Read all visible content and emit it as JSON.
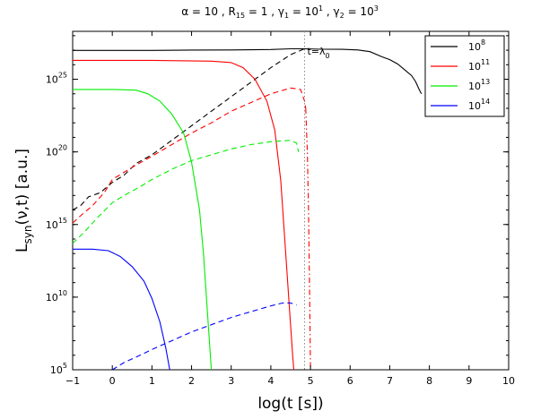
{
  "chart_data": {
    "type": "line",
    "title": {
      "alpha": "α = 10",
      "r15": "R",
      "r15_sub": "15",
      "r15_val": " = 1 ,",
      "g1": "γ",
      "g1_sub": "1",
      "g1_val": " = 10",
      "g1_exp": "1",
      "g2": " , γ",
      "g2_sub": "2",
      "g2_val": " = 10",
      "g2_exp": "3"
    },
    "xlabel": "log(t [s])",
    "ylabel": {
      "main": "L",
      "sub": "syn",
      "rest": "(ν,t) [a.u.]"
    },
    "xlim": [
      -1,
      10
    ],
    "ylim": [
      5,
      28.3
    ],
    "yscale": "log",
    "xticks": [
      "−1",
      "0",
      "1",
      "2",
      "3",
      "4",
      "5",
      "6",
      "7",
      "8",
      "9",
      "10"
    ],
    "yticks": [
      {
        "base": "10",
        "exp": "5",
        "value": 5
      },
      {
        "base": "10",
        "exp": "10",
        "value": 10
      },
      {
        "base": "10",
        "exp": "15",
        "value": 15
      },
      {
        "base": "10",
        "exp": "20",
        "value": 20
      },
      {
        "base": "10",
        "exp": "25",
        "value": 25
      }
    ],
    "annotation": {
      "text": "t=λ",
      "sub": "0",
      "x": 4.85
    },
    "legend_position": "top-right",
    "series": [
      {
        "name": "10",
        "name_exp": "8",
        "color": "#000000",
        "solid": [
          [
            -1,
            26.99
          ],
          [
            1,
            26.99
          ],
          [
            2,
            27.01
          ],
          [
            3,
            27.02
          ],
          [
            4,
            27.05
          ],
          [
            4.5,
            27.1
          ],
          [
            4.85,
            27.1
          ],
          [
            5.3,
            27.07
          ],
          [
            5.8,
            27.06
          ],
          [
            6.2,
            27.02
          ],
          [
            6.5,
            26.9
          ],
          [
            6.8,
            26.55
          ],
          [
            7.0,
            26.35
          ],
          [
            7.2,
            26.05
          ],
          [
            7.4,
            25.6
          ],
          [
            7.55,
            25.25
          ],
          [
            7.65,
            24.85
          ],
          [
            7.75,
            24.25
          ],
          [
            7.8,
            24.0
          ]
        ],
        "dashed": [
          [
            -1,
            16.0
          ],
          [
            -0.8,
            16.3
          ],
          [
            -0.6,
            16.9
          ],
          [
            -0.3,
            17.2
          ],
          [
            0,
            17.9
          ],
          [
            0.3,
            18.4
          ],
          [
            0.6,
            19.2
          ],
          [
            1,
            19.8
          ],
          [
            1.5,
            20.8
          ],
          [
            2,
            21.8
          ],
          [
            2.5,
            22.8
          ],
          [
            3,
            23.8
          ],
          [
            3.5,
            24.8
          ],
          [
            4,
            25.8
          ],
          [
            4.5,
            26.7
          ],
          [
            4.85,
            27.1
          ]
        ]
      },
      {
        "name": "10",
        "name_exp": "11",
        "color": "#ff0000",
        "solid": [
          [
            -1,
            26.3
          ],
          [
            1,
            26.3
          ],
          [
            2.5,
            26.25
          ],
          [
            3.0,
            26.15
          ],
          [
            3.3,
            25.8
          ],
          [
            3.6,
            25.0
          ],
          [
            3.9,
            23.5
          ],
          [
            4.1,
            21.5
          ],
          [
            4.25,
            18.0
          ],
          [
            4.35,
            14.0
          ],
          [
            4.45,
            10.0
          ],
          [
            4.55,
            6.0
          ],
          [
            4.58,
            5.0
          ]
        ],
        "dashed": [
          [
            -1,
            15.1
          ],
          [
            -0.8,
            15.6
          ],
          [
            -0.5,
            16.3
          ],
          [
            -0.2,
            17.2
          ],
          [
            0,
            18.1
          ],
          [
            0.3,
            18.6
          ],
          [
            0.6,
            19.1
          ],
          [
            1,
            19.7
          ],
          [
            1.5,
            20.5
          ],
          [
            2,
            21.3
          ],
          [
            2.5,
            22.0
          ],
          [
            3,
            22.8
          ],
          [
            3.5,
            23.4
          ],
          [
            4,
            24.0
          ],
          [
            4.5,
            24.4
          ],
          [
            4.75,
            24.3
          ],
          [
            4.85,
            23.5
          ],
          [
            4.88,
            23.0
          ]
        ],
        "dashdot": [
          [
            4.88,
            23.0
          ],
          [
            4.92,
            20.0
          ],
          [
            4.95,
            16.0
          ],
          [
            4.98,
            10.0
          ],
          [
            5.0,
            5.0
          ]
        ]
      },
      {
        "name": "10",
        "name_exp": "13",
        "color": "#00ee00",
        "solid": [
          [
            -1,
            24.3
          ],
          [
            0,
            24.3
          ],
          [
            0.6,
            24.25
          ],
          [
            0.9,
            24.0
          ],
          [
            1.2,
            23.5
          ],
          [
            1.5,
            22.6
          ],
          [
            1.8,
            21.3
          ],
          [
            2.0,
            19.3
          ],
          [
            2.2,
            16.0
          ],
          [
            2.3,
            13.0
          ],
          [
            2.4,
            9.0
          ],
          [
            2.5,
            5.0
          ]
        ],
        "dashed": [
          [
            -1,
            13.7
          ],
          [
            -0.7,
            14.5
          ],
          [
            -0.4,
            15.4
          ],
          [
            0,
            16.5
          ],
          [
            0.3,
            17.0
          ],
          [
            0.7,
            17.6
          ],
          [
            1,
            18.1
          ],
          [
            1.5,
            18.8
          ],
          [
            2,
            19.4
          ],
          [
            2.5,
            19.8
          ],
          [
            3,
            20.2
          ],
          [
            3.5,
            20.5
          ],
          [
            4,
            20.7
          ],
          [
            4.5,
            20.8
          ],
          [
            4.65,
            20.6
          ],
          [
            4.7,
            20.0
          ]
        ]
      },
      {
        "name": "10",
        "name_exp": "14",
        "color": "#0000ff",
        "solid": [
          [
            -1,
            13.3
          ],
          [
            -0.5,
            13.3
          ],
          [
            -0.1,
            13.2
          ],
          [
            0.2,
            12.8
          ],
          [
            0.5,
            12.1
          ],
          [
            0.8,
            11.1
          ],
          [
            1.0,
            9.9
          ],
          [
            1.2,
            8.3
          ],
          [
            1.35,
            6.5
          ],
          [
            1.45,
            5.0
          ]
        ],
        "dashed": [
          [
            0.0,
            5.0
          ],
          [
            0.3,
            5.5
          ],
          [
            0.7,
            6.0
          ],
          [
            1,
            6.4
          ],
          [
            1.5,
            7.0
          ],
          [
            2,
            7.6
          ],
          [
            2.5,
            8.1
          ],
          [
            3,
            8.6
          ],
          [
            3.5,
            9.0
          ],
          [
            4,
            9.4
          ],
          [
            4.3,
            9.6
          ],
          [
            4.5,
            9.6
          ],
          [
            4.65,
            9.45
          ]
        ]
      }
    ]
  }
}
